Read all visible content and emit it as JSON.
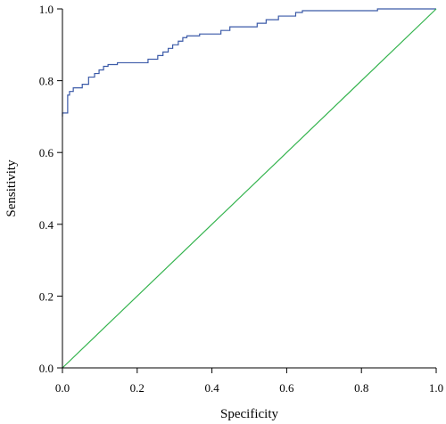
{
  "chart_data": {
    "type": "line",
    "title": "",
    "xlabel": "Specificity",
    "ylabel": "Sensitivity",
    "xlim": [
      0.0,
      1.0
    ],
    "ylim": [
      0.0,
      1.0
    ],
    "x_ticks": [
      "0.0",
      "0.2",
      "0.4",
      "0.6",
      "0.8",
      "1.0"
    ],
    "y_ticks": [
      "0.0",
      "0.2",
      "0.4",
      "0.6",
      "0.8",
      "1.0"
    ],
    "x_tick_values": [
      0.0,
      0.2,
      0.4,
      0.6,
      0.8,
      1.0
    ],
    "y_tick_values": [
      0.0,
      0.2,
      0.4,
      0.6,
      0.8,
      1.0
    ],
    "grid": false,
    "legend": "none",
    "series": [
      {
        "color": "#3b5aa8",
        "style": "step",
        "x": [
          0.0,
          0.0,
          0.014,
          0.014,
          0.019,
          0.019,
          0.029,
          0.029,
          0.053,
          0.053,
          0.07,
          0.07,
          0.086,
          0.086,
          0.098,
          0.098,
          0.11,
          0.11,
          0.122,
          0.122,
          0.138,
          0.138,
          0.147,
          0.147,
          0.229,
          0.229,
          0.255,
          0.255,
          0.269,
          0.269,
          0.283,
          0.283,
          0.295,
          0.295,
          0.31,
          0.31,
          0.322,
          0.322,
          0.333,
          0.333,
          0.345,
          0.345,
          0.357,
          0.357,
          0.367,
          0.367,
          0.424,
          0.424,
          0.448,
          0.448,
          0.46,
          0.46,
          0.521,
          0.521,
          0.545,
          0.545,
          0.564,
          0.564,
          0.578,
          0.578,
          0.607,
          0.607,
          0.624,
          0.624,
          0.642,
          0.642,
          0.659,
          0.659,
          0.748,
          0.748,
          0.843,
          0.843,
          1.0
        ],
        "y": [
          0.7,
          0.71,
          0.71,
          0.76,
          0.76,
          0.77,
          0.77,
          0.78,
          0.78,
          0.79,
          0.79,
          0.81,
          0.81,
          0.82,
          0.82,
          0.83,
          0.83,
          0.84,
          0.84,
          0.845,
          0.845,
          0.845,
          0.845,
          0.85,
          0.85,
          0.86,
          0.86,
          0.87,
          0.87,
          0.88,
          0.88,
          0.89,
          0.89,
          0.9,
          0.9,
          0.91,
          0.91,
          0.92,
          0.92,
          0.925,
          0.925,
          0.925,
          0.925,
          0.925,
          0.925,
          0.93,
          0.93,
          0.94,
          0.94,
          0.95,
          0.95,
          0.95,
          0.95,
          0.96,
          0.96,
          0.97,
          0.97,
          0.97,
          0.97,
          0.98,
          0.98,
          0.98,
          0.98,
          0.99,
          0.99,
          0.995,
          0.995,
          0.995,
          0.995,
          0.995,
          0.995,
          1.0,
          1.0
        ]
      },
      {
        "color": "#33b34d",
        "style": "line",
        "x": [
          0.0,
          1.0
        ],
        "y": [
          0.0,
          1.0
        ]
      }
    ]
  }
}
